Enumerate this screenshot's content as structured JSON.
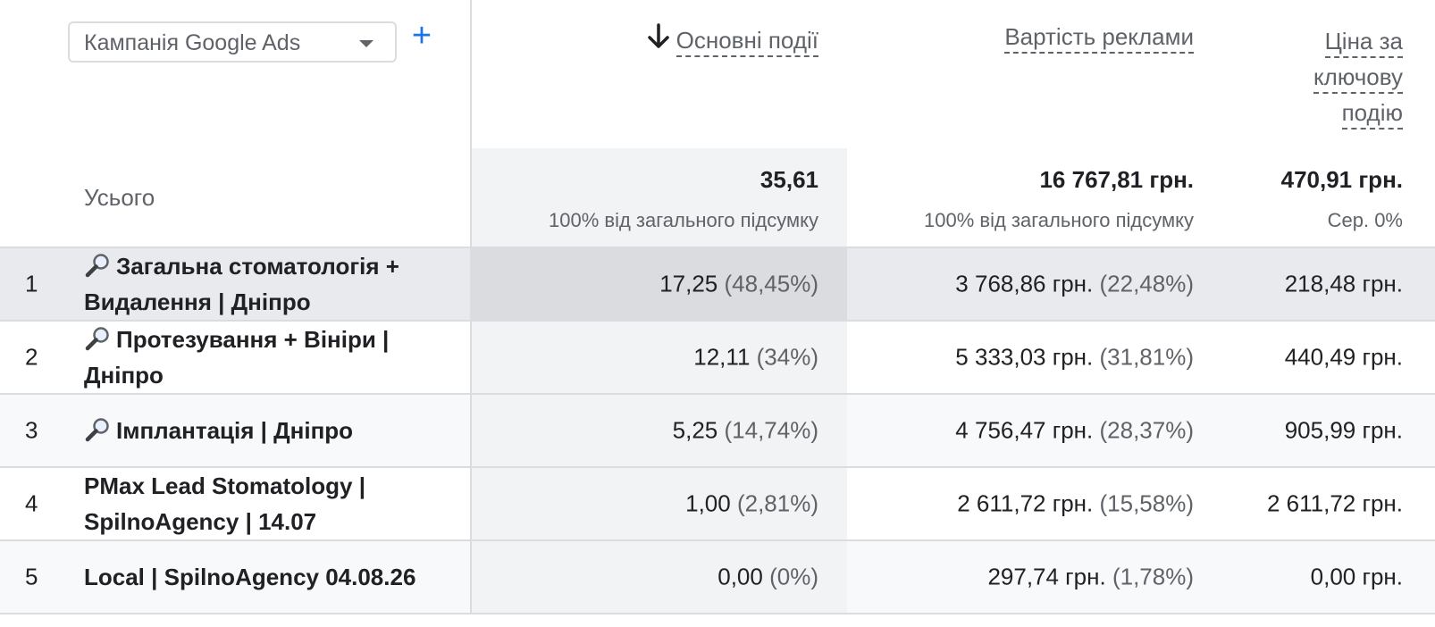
{
  "dimension_selector": {
    "label": "Кампанія Google Ads",
    "add_label": "+"
  },
  "columns": {
    "key_events": {
      "label": "Основні події",
      "sort_arrow": "↓"
    },
    "ad_cost": {
      "label": "Вартість реклами"
    },
    "cost_per_key_event": {
      "line1": "Ціна за",
      "line2": "ключову",
      "line3": "подію"
    }
  },
  "totals": {
    "label": "Усього",
    "key_events": "35,61",
    "key_events_sub": "100% від загального підсумку",
    "ad_cost": "16 767,81 грн.",
    "ad_cost_sub": "100% від загального підсумку",
    "cost_per_key_event": "470,91 грн.",
    "cost_per_key_event_sub": "Сер. 0%"
  },
  "rows": [
    {
      "num": "1",
      "name": "Загальна стоматологія + Видалення | Дніпро",
      "search_icon": true,
      "key_events": "17,25",
      "key_events_pct": "(48,45%)",
      "ad_cost": "3 768,86 грн.",
      "ad_cost_pct": "(22,48%)",
      "cost_per_key_event": "218,48 грн."
    },
    {
      "num": "2",
      "name": "Протезування + Вініри | Дніпро",
      "search_icon": true,
      "key_events": "12,11",
      "key_events_pct": "(34%)",
      "ad_cost": "5 333,03 грн.",
      "ad_cost_pct": "(31,81%)",
      "cost_per_key_event": "440,49 грн."
    },
    {
      "num": "3",
      "name": "Імплантація | Дніпро",
      "search_icon": true,
      "key_events": "5,25",
      "key_events_pct": "(14,74%)",
      "ad_cost": "4 756,47 грн.",
      "ad_cost_pct": "(28,37%)",
      "cost_per_key_event": "905,99 грн."
    },
    {
      "num": "4",
      "name": "PMax Lead Stomatology | SpilnoAgency | 14.07",
      "search_icon": false,
      "key_events": "1,00",
      "key_events_pct": "(2,81%)",
      "ad_cost": "2 611,72 грн.",
      "ad_cost_pct": "(15,58%)",
      "cost_per_key_event": "2 611,72 грн."
    },
    {
      "num": "5",
      "name": "Local | SpilnoAgency 04.08.26",
      "search_icon": false,
      "key_events": "0,00",
      "key_events_pct": "(0%)",
      "ad_cost": "297,74 грн.",
      "ad_cost_pct": "(1,78%)",
      "cost_per_key_event": "0,00 грн."
    }
  ],
  "colors": {
    "accent": "#1a73e8",
    "hover_row": "#e8eaed",
    "hover_cell": "#dadce0",
    "sorted_column": "#f1f3f4",
    "alt_row": "#f8f9fa",
    "border": "#dadce0",
    "muted_text": "#5f6368"
  }
}
